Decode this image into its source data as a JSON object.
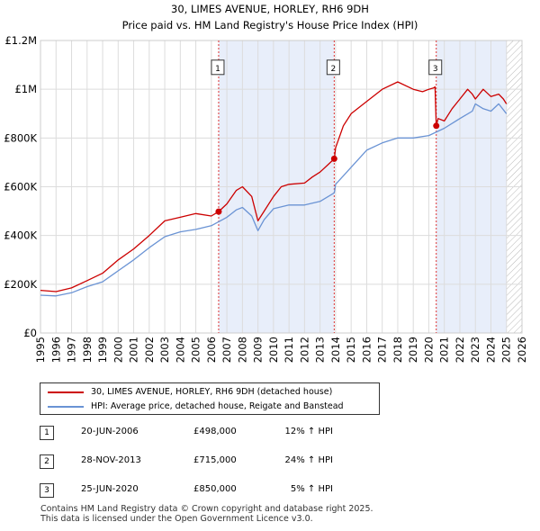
{
  "chart_data": {
    "type": "line",
    "title": "30, LIMES AVENUE, HORLEY, RH6 9DH",
    "subtitle": "Price paid vs. HM Land Registry's House Price Index (HPI)",
    "ylim": [
      0,
      1200000
    ],
    "xlim": [
      1995,
      2026
    ],
    "y_ticks": [
      0,
      200000,
      400000,
      600000,
      800000,
      1000000,
      1200000
    ],
    "y_tick_labels": [
      "£0",
      "£200K",
      "£400K",
      "£600K",
      "£800K",
      "£1M",
      "£1.2M"
    ],
    "x_ticks": [
      1995,
      1996,
      1997,
      1998,
      1999,
      2000,
      2001,
      2002,
      2003,
      2004,
      2005,
      2006,
      2007,
      2008,
      2009,
      2010,
      2011,
      2012,
      2013,
      2014,
      2015,
      2016,
      2017,
      2018,
      2019,
      2020,
      2021,
      2022,
      2023,
      2024,
      2025,
      2026
    ],
    "x_tick_labels": [
      "1995",
      "1996",
      "1997",
      "1998",
      "1999",
      "2000",
      "2001",
      "2002",
      "2003",
      "2004",
      "2005",
      "2006",
      "2007",
      "2008",
      "2009",
      "2010",
      "2011",
      "2012",
      "2013",
      "2014",
      "2015",
      "2016",
      "2017",
      "2018",
      "2019",
      "2020",
      "2021",
      "2022",
      "2023",
      "2024",
      "2025",
      "2026"
    ],
    "grid": true,
    "shaded_periods": [
      [
        2006.47,
        2013.91
      ],
      [
        2020.48,
        2025.0
      ]
    ],
    "forecast_start": 2025.0,
    "series": [
      {
        "name": "30, LIMES AVENUE, HORLEY, RH6 9DH (detached house)",
        "color": "#cc0000",
        "x": [
          1995,
          1996,
          1997,
          1998,
          1999,
          2000,
          2001,
          2002,
          2003,
          2004,
          2005,
          2006,
          2006.47,
          2007,
          2007.6,
          2008,
          2008.6,
          2009,
          2009.4,
          2010,
          2010.5,
          2011,
          2012,
          2012.5,
          2013,
          2013.5,
          2013.91,
          2014,
          2014.5,
          2015,
          2016,
          2017,
          2018,
          2019,
          2019.6,
          2020,
          2020.3,
          2020.4,
          2020.48,
          2020.6,
          2021,
          2021.5,
          2022,
          2022.5,
          2022.8,
          2023,
          2023.5,
          2024,
          2024.5,
          2024.8,
          2025
        ],
        "y": [
          175000,
          170000,
          185000,
          215000,
          245000,
          300000,
          345000,
          400000,
          460000,
          475000,
          490000,
          480000,
          498000,
          530000,
          585000,
          600000,
          560000,
          460000,
          500000,
          560000,
          600000,
          610000,
          615000,
          640000,
          660000,
          690000,
          715000,
          760000,
          850000,
          900000,
          950000,
          1000000,
          1030000,
          1000000,
          990000,
          1000000,
          1005000,
          1010000,
          850000,
          880000,
          870000,
          920000,
          960000,
          1000000,
          980000,
          960000,
          1000000,
          970000,
          980000,
          960000,
          940000
        ]
      },
      {
        "name": "HPI: Average price, detached house, Reigate and Banstead",
        "color": "#6a93d4",
        "x": [
          1995,
          1996,
          1997,
          1998,
          1999,
          2000,
          2001,
          2002,
          2003,
          2004,
          2005,
          2006,
          2007,
          2007.6,
          2008,
          2008.6,
          2009,
          2009.4,
          2010,
          2011,
          2012,
          2013,
          2013.91,
          2014,
          2015,
          2016,
          2017,
          2018,
          2019,
          2020,
          2021,
          2022,
          2022.8,
          2023,
          2023.5,
          2024,
          2024.5,
          2025
        ],
        "y": [
          155000,
          152000,
          165000,
          190000,
          210000,
          255000,
          300000,
          350000,
          395000,
          415000,
          425000,
          440000,
          475000,
          505000,
          515000,
          480000,
          420000,
          465000,
          510000,
          525000,
          525000,
          540000,
          575000,
          610000,
          680000,
          750000,
          780000,
          800000,
          800000,
          810000,
          840000,
          880000,
          910000,
          940000,
          920000,
          910000,
          940000,
          900000
        ]
      }
    ],
    "markers": [
      {
        "label": "1",
        "x": 2006.47,
        "y": 498000
      },
      {
        "label": "2",
        "x": 2013.91,
        "y": 715000
      },
      {
        "label": "3",
        "x": 2020.48,
        "y": 850000
      }
    ]
  },
  "legend": {
    "property_label": "30, LIMES AVENUE, HORLEY, RH6 9DH (detached house)",
    "hpi_label": "HPI: Average price, detached house, Reigate and Banstead",
    "property_color": "#cc0000",
    "hpi_color": "#6a93d4"
  },
  "sales": [
    {
      "num": "1",
      "date": "20-JUN-2006",
      "price": "£498,000",
      "hpi": "12% ↑ HPI"
    },
    {
      "num": "2",
      "date": "28-NOV-2013",
      "price": "£715,000",
      "hpi": "24% ↑ HPI"
    },
    {
      "num": "3",
      "date": "25-JUN-2020",
      "price": "£850,000",
      "hpi": "5% ↑ HPI"
    }
  ],
  "footer": {
    "line1": "Contains HM Land Registry data © Crown copyright and database right 2025.",
    "line2": "This data is licensed under the Open Government Licence v3.0."
  }
}
